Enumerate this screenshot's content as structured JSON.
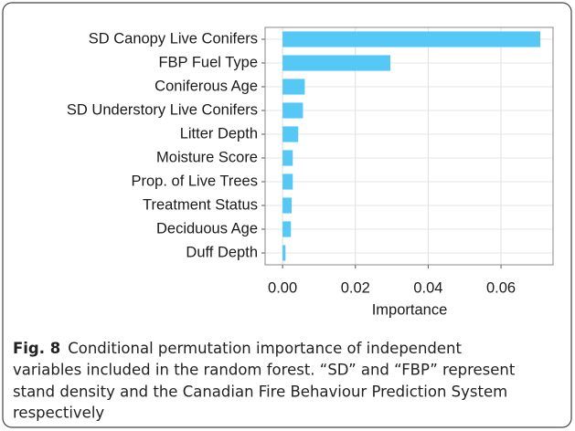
{
  "chart_data": {
    "type": "barh",
    "categories": [
      "SD Canopy Live Conifers",
      "FBP Fuel Type",
      "Coniferous Age",
      "SD Understory Live Conifers",
      "Litter Depth",
      "Moisture Score",
      "Prop. of Live Trees",
      "Treatment Status",
      "Deciduous Age",
      "Duff Depth"
    ],
    "values": [
      0.0708,
      0.0296,
      0.0061,
      0.0056,
      0.0043,
      0.0028,
      0.0028,
      0.0025,
      0.0023,
      0.0008
    ],
    "color": "#55c8f5",
    "xlabel": "Importance",
    "xlim": [
      -0.0048,
      0.0743
    ],
    "xticks": [
      {
        "value": 0,
        "label": "0.00"
      },
      {
        "value": 0.02,
        "label": "0.02"
      },
      {
        "value": 0.04,
        "label": "0.04"
      },
      {
        "value": 0.06,
        "label": "0.06"
      }
    ],
    "grid": true
  },
  "caption": {
    "label": "Fig. 8",
    "lines": [
      "Conditional permutation importance of independent",
      "variables included in the random forest. “SD” and “FBP” represent",
      "stand density and the Canadian Fire Behaviour Prediction System",
      "respectively"
    ]
  }
}
